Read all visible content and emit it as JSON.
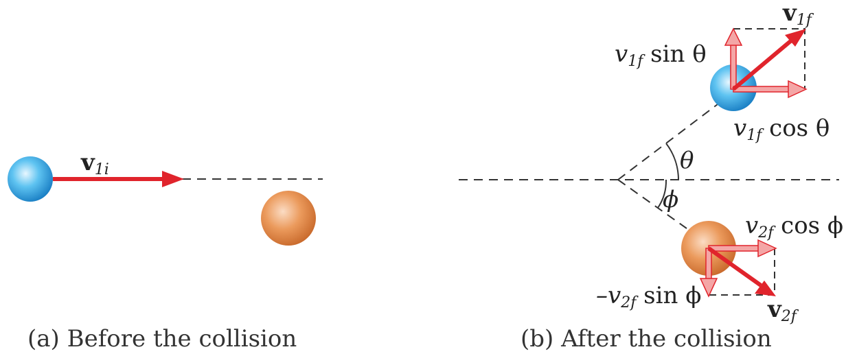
{
  "panel_a": {
    "caption": "(a) Before the collision",
    "v1i": {
      "base": "v",
      "sub": "1i"
    }
  },
  "panel_b": {
    "caption": "(b) After the collision",
    "v1f": {
      "base": "v",
      "sub": "1f"
    },
    "v1f_sin": {
      "pre": "v",
      "sub": "1f",
      "post": " sin θ"
    },
    "v1f_cos": {
      "pre": "v",
      "sub": "1f",
      "post": " cos θ"
    },
    "theta": "θ",
    "phi": "ϕ",
    "v2f_cos": {
      "pre": "v",
      "sub": "2f",
      "post": " cos ϕ"
    },
    "v2f_sin": {
      "pre": "–v",
      "sub": "2f",
      "post": " sin ϕ"
    },
    "v2f": {
      "base": "v",
      "sub": "2f"
    }
  },
  "colors": {
    "ball_blue": "#2aa6e6",
    "ball_orange": "#e58a4a",
    "arrow_red": "#e0242c",
    "component_pink": "#f4a6a6",
    "component_outline": "#e0242c",
    "dashed": "#333333"
  }
}
